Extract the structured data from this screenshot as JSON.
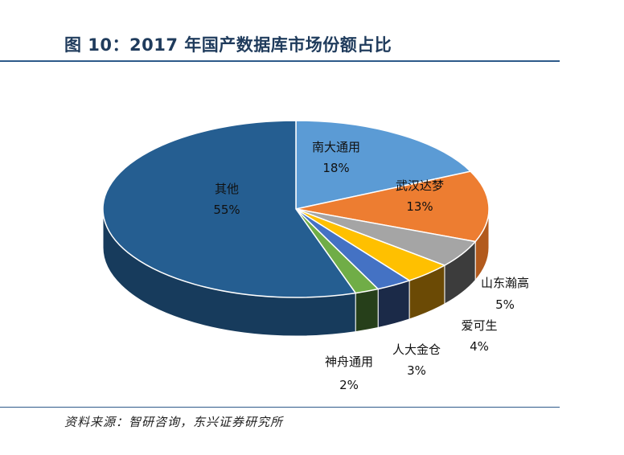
{
  "header": {
    "title": "图 10：2017 年国产数据库市场份额占比"
  },
  "footer": {
    "source": "资料来源：智研咨询，东兴证券研究所"
  },
  "chart_data": {
    "type": "pie",
    "title": "图 10：2017 年国产数据库市场份额占比",
    "slices": [
      {
        "label": "南大通用",
        "value": 18,
        "value_label": "18%",
        "color": "#5b9bd5",
        "side": "#3a72a8"
      },
      {
        "label": "武汉达梦",
        "value": 13,
        "value_label": "13%",
        "color": "#ed7d31",
        "side": "#b25a1d"
      },
      {
        "label": "山东瀚高",
        "value": 5,
        "value_label": "5%",
        "color": "#a5a5a5",
        "side": "#3c3c3c"
      },
      {
        "label": "爱可生",
        "value": 4,
        "value_label": "4%",
        "color": "#ffc000",
        "side": "#6b4a05"
      },
      {
        "label": "人大金仓",
        "value": 3,
        "value_label": "3%",
        "color": "#4472c4",
        "side": "#1b2a48"
      },
      {
        "label": "神舟通用",
        "value": 2,
        "value_label": "2%",
        "color": "#70ad47",
        "side": "#263f1a"
      },
      {
        "label": "其他",
        "value": 55,
        "value_label": "55%",
        "color": "#255e91",
        "side": "#173b5c"
      }
    ]
  }
}
